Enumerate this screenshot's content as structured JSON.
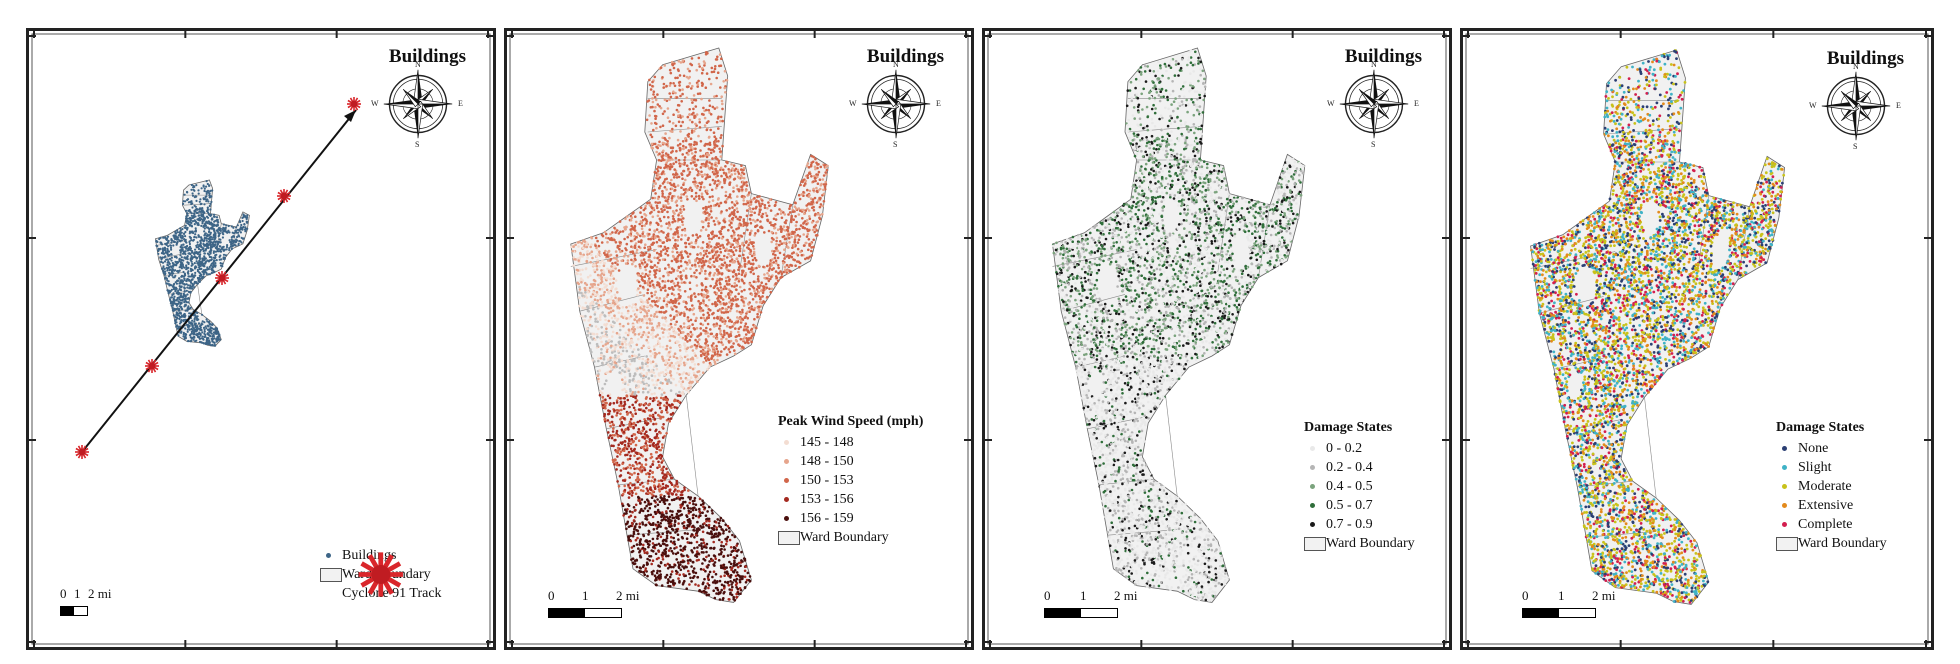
{
  "panels": [
    {
      "title": "Buildings",
      "legend": {
        "title": "",
        "items": [
          {
            "label": "Buildings",
            "kind": "dot",
            "color": "#3d6587"
          },
          {
            "label": "Ward Boundary",
            "kind": "box"
          },
          {
            "label": "Cyclone 91 Track",
            "kind": "star",
            "color": "#d9262b"
          }
        ]
      },
      "scale_labels": [
        "0",
        "1",
        "2 mi"
      ],
      "compass": {
        "n": "N",
        "s": "S",
        "e": "E",
        "w": "W"
      }
    },
    {
      "title": "Buildings",
      "legend": {
        "title": "Peak Wind Speed (mph)",
        "items": [
          {
            "label": "145 - 148",
            "kind": "dot",
            "color": "#f3ddd2"
          },
          {
            "label": "148 - 150",
            "kind": "dot",
            "color": "#e6a58c"
          },
          {
            "label": "150 - 153",
            "kind": "dot",
            "color": "#d1664a"
          },
          {
            "label": "153 - 156",
            "kind": "dot",
            "color": "#a4291f"
          },
          {
            "label": "156 - 159",
            "kind": "dot",
            "color": "#4a0f0d"
          },
          {
            "label": "Ward Boundary",
            "kind": "box"
          }
        ]
      },
      "scale_labels": [
        "0",
        "1",
        "2 mi"
      ],
      "compass": {
        "n": "N",
        "s": "S",
        "e": "E",
        "w": "W"
      }
    },
    {
      "title": "Buildings",
      "legend": {
        "title": "Damage States",
        "items": [
          {
            "label": "0 - 0.2",
            "kind": "dot",
            "color": "#e9e9e9"
          },
          {
            "label": "0.2 - 0.4",
            "kind": "dot",
            "color": "#b5b5b5"
          },
          {
            "label": "0.4 - 0.5",
            "kind": "dot",
            "color": "#7ba37d"
          },
          {
            "label": "0.5 - 0.7",
            "kind": "dot",
            "color": "#2f6e3a"
          },
          {
            "label": "0.7 - 0.9",
            "kind": "dot",
            "color": "#1a1a1a"
          },
          {
            "label": "Ward Boundary",
            "kind": "box"
          }
        ]
      },
      "scale_labels": [
        "0",
        "1",
        "2 mi"
      ],
      "compass": {
        "n": "N",
        "s": "S",
        "e": "E",
        "w": "W"
      }
    },
    {
      "title": "Buildings",
      "legend": {
        "title": "Damage States",
        "items": [
          {
            "label": "None",
            "kind": "dot",
            "color": "#2b3f73"
          },
          {
            "label": "Slight",
            "kind": "dot",
            "color": "#3fb2c6"
          },
          {
            "label": "Moderate",
            "kind": "dot",
            "color": "#c8c21b"
          },
          {
            "label": "Extensive",
            "kind": "dot",
            "color": "#e38a1c"
          },
          {
            "label": "Complete",
            "kind": "dot",
            "color": "#d31f4f"
          },
          {
            "label": "Ward Boundary",
            "kind": "box"
          }
        ]
      },
      "scale_labels": [
        "0",
        "1",
        "2 mi"
      ],
      "compass": {
        "n": "N",
        "s": "S",
        "e": "E",
        "w": "W"
      }
    }
  ]
}
